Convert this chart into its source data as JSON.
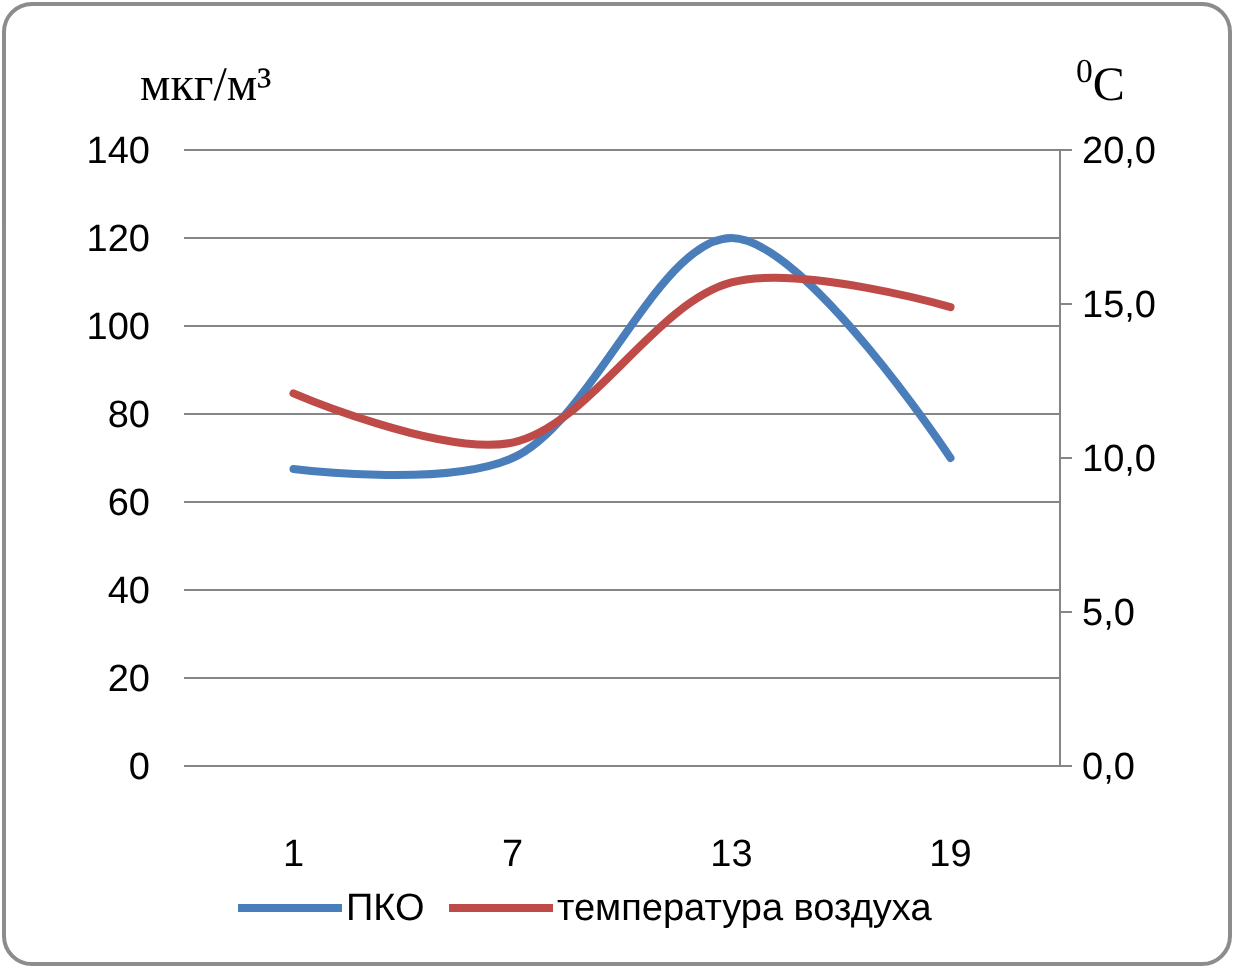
{
  "chart_data": {
    "type": "line",
    "ylabel": "мкг/м³",
    "y2label": "$^{0}$C",
    "categories": [
      "1",
      "7",
      "13",
      "19"
    ],
    "series": [
      {
        "name": "ПКО",
        "color": "#4a7ebb",
        "values": [
          67.5,
          70,
          120,
          70
        ]
      },
      {
        "name": "температура воздуха",
        "color": "#be4b48",
        "values": [
          12.1,
          10.5,
          15.7,
          14.9
        ],
        "axis": "y2"
      }
    ],
    "ylim": [
      0,
      140
    ],
    "yticks": [
      0,
      20,
      40,
      60,
      80,
      100,
      120,
      140
    ],
    "y2lim": [
      0,
      20
    ],
    "y2ticks": [
      {
        "value": 0,
        "label": "0,0"
      },
      {
        "value": 5,
        "label": "5,0"
      },
      {
        "value": 10,
        "label": "10,0"
      },
      {
        "value": 15,
        "label": "15,0"
      },
      {
        "value": 20,
        "label": "20,0"
      }
    ],
    "grid": "y",
    "legend": "bottom",
    "marker": "none",
    "line_style": "solid"
  }
}
